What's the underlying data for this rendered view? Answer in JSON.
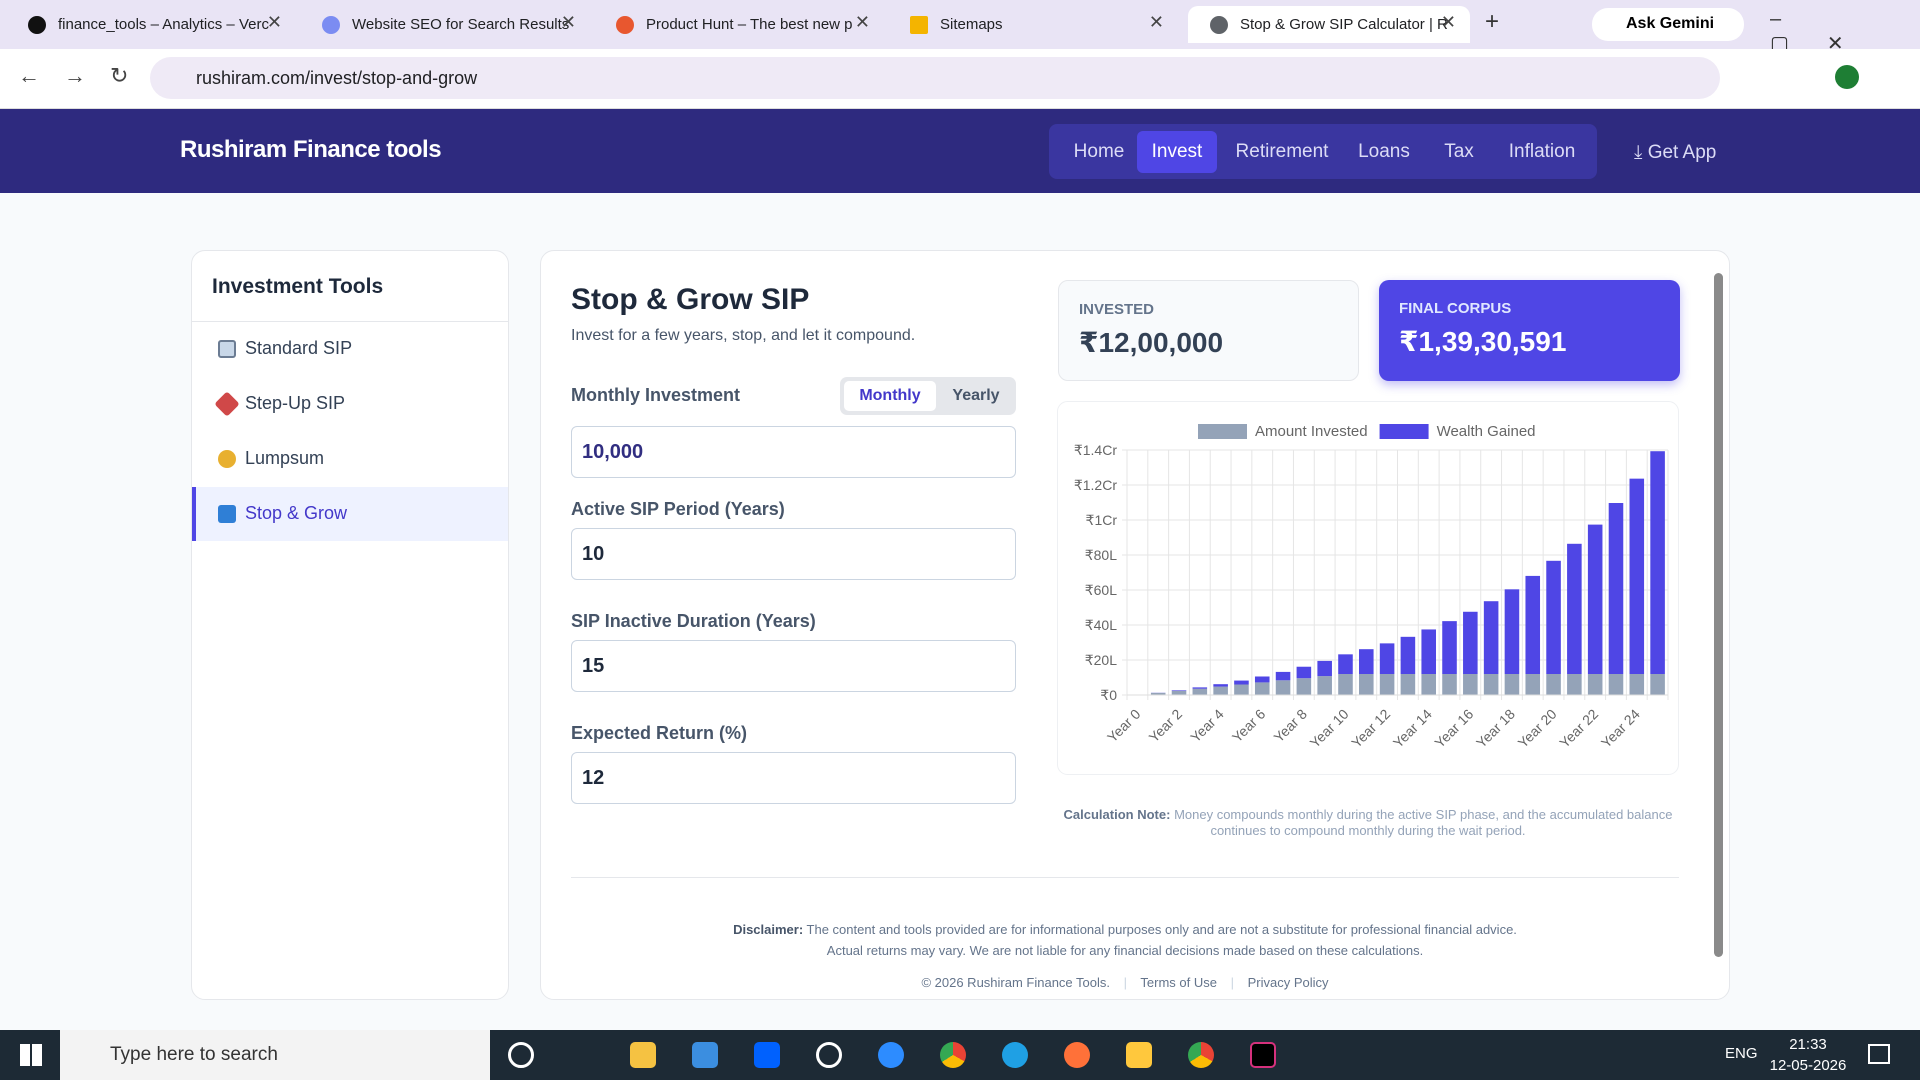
{
  "browser": {
    "tabs": [
      "finance_tools – Analytics – Verc",
      "Website SEO for Search Results",
      "Product Hunt – The best new p",
      "Sitemaps",
      "Stop & Grow SIP Calculator | R"
    ],
    "ask": "Ask Gemini",
    "url": "rushiram.com/invest/stop-and-grow"
  },
  "header": {
    "brand": "Rushiram Finance tools",
    "nav": [
      "Home",
      "Invest",
      "Retirement",
      "Loans",
      "Tax",
      "Inflation"
    ],
    "get_app": "Get App"
  },
  "sidebar": {
    "title": "Investment Tools",
    "items": [
      "Standard SIP",
      "Step-Up SIP",
      "Lumpsum",
      "Stop & Grow"
    ]
  },
  "main": {
    "title": "Stop & Grow SIP",
    "subtitle": "Invest for a few years, stop, and let it compound.",
    "toggle": [
      "Monthly",
      "Yearly"
    ],
    "inputs": [
      {
        "label": "Monthly Investment",
        "value": "10,000"
      },
      {
        "label": "Active SIP Period (Years)",
        "value": "10"
      },
      {
        "label": "SIP Inactive Duration (Years)",
        "value": "15"
      },
      {
        "label": "Expected Return (%)",
        "value": "12"
      }
    ],
    "stats": [
      {
        "label": "INVESTED",
        "value": "₹12,00,000"
      },
      {
        "label": "FINAL CORPUS",
        "value": "₹1,39,30,591"
      }
    ],
    "note": {
      "label": "Calculation Note:",
      "text": [
        "Money compounds monthly during the active SIP phase, and the accumulated balance",
        "continues to compound monthly during the wait period."
      ]
    },
    "disclaimer": {
      "label": "Disclaimer:",
      "text": [
        "The content and tools provided are for informational purposes only and are not a substitute for professional financial advice.",
        "Actual returns may vary. We are not liable for any financial decisions made based on these calculations."
      ]
    },
    "footer": [
      "© 2026 Rushiram Finance Tools.",
      "Terms of Use",
      "Privacy Policy"
    ]
  },
  "chart_data": {
    "type": "stacked_bar",
    "categories": [
      "Year 0",
      null,
      "Year 2",
      null,
      "Year 4",
      null,
      "Year 6",
      null,
      "Year 8",
      null,
      "Year 10",
      null,
      "Year 12",
      null,
      "Year 14",
      null,
      "Year 16",
      null,
      "Year 18",
      null,
      "Year 20",
      null,
      "Year 22",
      null,
      "Year 24",
      null
    ],
    "series": [
      {
        "name": "Amount Invested",
        "color": "#94a3b8",
        "values": [
          0,
          120000,
          240000,
          360000,
          480000,
          600000,
          720000,
          840000,
          960000,
          1080000,
          1200000,
          1200000,
          1200000,
          1200000,
          1200000,
          1200000,
          1200000,
          1200000,
          1200000,
          1200000,
          1200000,
          1200000,
          1200000,
          1200000,
          1200000,
          1200000
        ]
      },
      {
        "name": "Wealth Gained",
        "color": "#4f46e5",
        "values": [
          0,
          8093,
          32432,
          75077,
          138348,
          224864,
          337570,
          479789,
          655265,
          868215,
          1123391,
          1418054,
          1750086,
          2124233,
          2545837,
          3020914,
          3556260,
          4159501,
          4839248,
          5605207,
          6468089,
          7440628,
          8536440,
          9771200,
          11162600,
          12730591
        ]
      }
    ],
    "ylim": [
      0,
      14000000
    ],
    "yticks": [
      {
        "value": 0,
        "label": "₹0"
      },
      {
        "value": 2000000,
        "label": "₹20L"
      },
      {
        "value": 4000000,
        "label": "₹40L"
      },
      {
        "value": 6000000,
        "label": "₹60L"
      },
      {
        "value": 8000000,
        "label": "₹80L"
      },
      {
        "value": 10000000,
        "label": "₹1Cr"
      },
      {
        "value": 12000000,
        "label": "₹1.2Cr"
      },
      {
        "value": 14000000,
        "label": "₹1.4Cr"
      }
    ],
    "grid": true,
    "legend": "top"
  },
  "taskbar": {
    "search": "Type here to search",
    "lang": "ENG",
    "time": "21:33",
    "date": "12-05-2026"
  }
}
